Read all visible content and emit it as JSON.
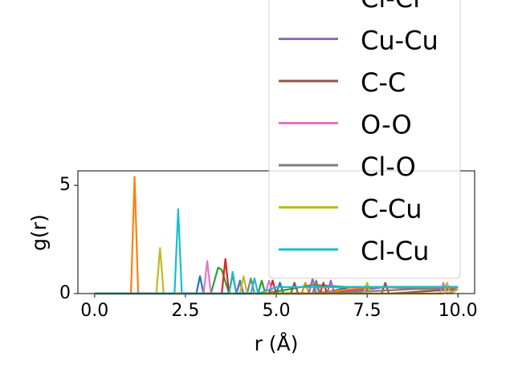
{
  "chart_data": {
    "type": "line",
    "xlabel": "r (Å)",
    "ylabel": "g(r)",
    "xlim": [
      -0.46,
      10.46
    ],
    "ylim": [
      0,
      5.67
    ],
    "xticks": [
      {
        "value": 0,
        "label": "0.0"
      },
      {
        "value": 2.5,
        "label": "2.5"
      },
      {
        "value": 5,
        "label": "5.0"
      },
      {
        "value": 7.5,
        "label": "7.5"
      },
      {
        "value": 10,
        "label": "10.0"
      }
    ],
    "yticks": [
      0,
      5
    ],
    "legend": "upper right",
    "series": [
      {
        "color": "#1f77b4",
        "x": [
          0,
          2.8,
          2.9,
          3.0,
          3.9,
          4.0,
          4.1,
          5.0,
          5.1,
          5.2,
          6.0,
          6.1,
          6.2,
          7.0,
          8.0,
          9.0,
          10.0
        ],
        "values": [
          0,
          0,
          0.8,
          0,
          0,
          0.6,
          0,
          0,
          0.5,
          0,
          0,
          0.4,
          0,
          0.3,
          0.3,
          0.3,
          0.3
        ]
      },
      {
        "color": "#ff7f0e",
        "x": [
          0,
          1.0,
          1.1,
          1.2,
          5.7,
          5.8,
          5.9,
          7.0,
          8.0,
          9.0,
          10.0
        ],
        "values": [
          0,
          0,
          5.4,
          0,
          0,
          0.5,
          0,
          0.2,
          0.3,
          0.2,
          0.2
        ]
      },
      {
        "color": "#2ca02c",
        "x": [
          0,
          3.2,
          3.4,
          3.5,
          3.7,
          4.5,
          4.6,
          4.7,
          6.0,
          7.0,
          8.0,
          9.0,
          10.0
        ],
        "values": [
          0,
          0,
          1.2,
          1.1,
          0,
          0,
          0.6,
          0,
          0.4,
          0.3,
          0.3,
          0.3,
          0.3
        ]
      },
      {
        "name": "Cl-Cl",
        "color": "#d62728",
        "x": [
          0,
          3.5,
          3.6,
          3.7,
          4.8,
          4.9,
          5.0,
          6.2,
          6.3,
          6.4,
          8.0,
          10.0
        ],
        "values": [
          0,
          0,
          1.6,
          0,
          0,
          0.6,
          0,
          0,
          0.5,
          0,
          0.3,
          0.3
        ]
      },
      {
        "name": "Cu-Cu",
        "color": "#9467bd",
        "x": [
          0,
          3.9,
          4.0,
          4.1,
          5.9,
          6.0,
          6.1,
          6.4,
          6.5,
          6.6,
          8.0,
          10.0
        ],
        "values": [
          0,
          0,
          0.5,
          0,
          0,
          0.7,
          0,
          0,
          0.6,
          0,
          0.3,
          0.2
        ]
      },
      {
        "name": "C-C",
        "color": "#8c564b",
        "x": [
          0,
          3.7,
          3.8,
          3.9,
          5.4,
          5.5,
          5.6,
          7.9,
          8.0,
          8.1,
          10.0
        ],
        "values": [
          0,
          0,
          0.9,
          0,
          0,
          0.5,
          0,
          0,
          0.5,
          0,
          0.2
        ]
      },
      {
        "name": "O-O",
        "color": "#e377c2",
        "x": [
          0,
          3.0,
          3.1,
          3.2,
          4.7,
          4.8,
          4.9,
          9.5,
          9.6,
          9.7,
          10.0
        ],
        "values": [
          0,
          0,
          1.5,
          0,
          0,
          0.6,
          0,
          0,
          0.5,
          0,
          0.2
        ]
      },
      {
        "name": "Cl-O",
        "color": "#7f7f7f",
        "x": [
          0,
          4.2,
          4.3,
          4.4,
          6.0,
          6.1,
          6.2,
          10.0
        ],
        "values": [
          0,
          0,
          0.7,
          0,
          0,
          0.6,
          0,
          0.3
        ]
      },
      {
        "name": "C-Cu",
        "color": "#bcbd22",
        "x": [
          0,
          1.7,
          1.8,
          1.9,
          4.0,
          4.1,
          4.2,
          7.4,
          7.5,
          7.6,
          9.6,
          9.7,
          9.8,
          10.0
        ],
        "values": [
          0,
          0,
          2.1,
          0,
          0,
          0.8,
          0,
          0,
          0.5,
          0,
          0,
          0.5,
          0,
          0.2
        ]
      },
      {
        "name": "Cl-Cu",
        "color": "#17becf",
        "x": [
          0,
          2.2,
          2.3,
          2.4,
          3.7,
          3.8,
          3.9,
          4.3,
          4.4,
          4.5,
          5.0,
          6.0,
          7.0,
          8.0,
          9.0,
          10.0
        ],
        "values": [
          0,
          0,
          3.9,
          0,
          0,
          1.0,
          0,
          0,
          0.7,
          0,
          0.3,
          0.3,
          0.3,
          0.3,
          0.3,
          0.3
        ]
      }
    ]
  }
}
